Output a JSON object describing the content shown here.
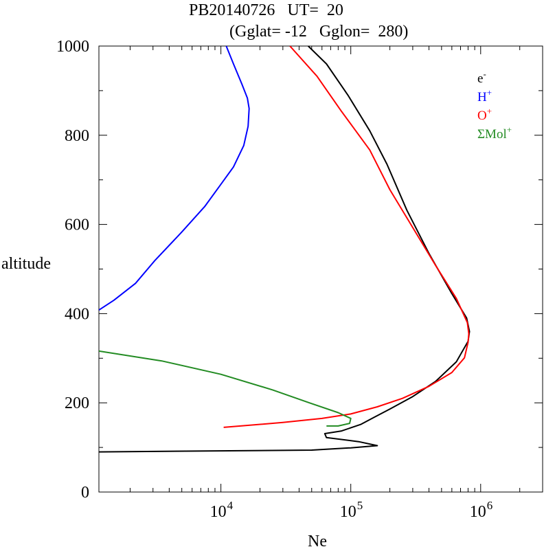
{
  "header": {
    "title_line1": "PB20140726   UT=  20",
    "title_line2": "(Gglat= -12   Gglon=  280)"
  },
  "chart_data": {
    "type": "line",
    "xlabel": "Ne",
    "ylabel": "altitude",
    "x_scale": "log",
    "xlim": [
      1150,
      3000000
    ],
    "ylim": [
      0,
      1000
    ],
    "y_ticks": [
      0,
      200,
      400,
      600,
      800,
      1000
    ],
    "x_tick_labels": [
      {
        "value": 10000,
        "base": "10",
        "exp": "4"
      },
      {
        "value": 100000,
        "base": "10",
        "exp": "5"
      },
      {
        "value": 1000000,
        "base": "10",
        "exp": "6"
      }
    ],
    "legend_position": "top-right",
    "series": [
      {
        "name": "e-",
        "label_base": "e",
        "label_sup": "-",
        "color": "#000000",
        "points": [
          [
            1150,
            90
          ],
          [
            50000,
            94
          ],
          [
            100000,
            99
          ],
          [
            160000,
            104
          ],
          [
            115000,
            113
          ],
          [
            65000,
            122
          ],
          [
            63000,
            131
          ],
          [
            85000,
            137
          ],
          [
            120000,
            152
          ],
          [
            150000,
            167
          ],
          [
            200000,
            186
          ],
          [
            300000,
            214
          ],
          [
            450000,
            248
          ],
          [
            650000,
            292
          ],
          [
            800000,
            338
          ],
          [
            820000,
            360
          ],
          [
            780000,
            390
          ],
          [
            600000,
            445
          ],
          [
            400000,
            535
          ],
          [
            270000,
            632
          ],
          [
            190000,
            735
          ],
          [
            140000,
            810
          ],
          [
            95000,
            890
          ],
          [
            65000,
            960
          ],
          [
            47000,
            1000
          ]
        ]
      },
      {
        "name": "H+",
        "label_base": "H",
        "label_sup": "+",
        "color": "#0000ff",
        "points": [
          [
            1150,
            408
          ],
          [
            1500,
            430
          ],
          [
            2200,
            468
          ],
          [
            3100,
            519
          ],
          [
            5000,
            583
          ],
          [
            7500,
            640
          ],
          [
            10000,
            690
          ],
          [
            12500,
            729
          ],
          [
            15000,
            777
          ],
          [
            16200,
            820
          ],
          [
            16500,
            860
          ],
          [
            16000,
            883
          ],
          [
            14500,
            915
          ],
          [
            12500,
            960
          ],
          [
            11000,
            1000
          ]
        ]
      },
      {
        "name": "O+",
        "label_base": "O",
        "label_sup": "+",
        "color": "#ff0000",
        "points": [
          [
            10500,
            145
          ],
          [
            30000,
            156
          ],
          [
            60000,
            165
          ],
          [
            100000,
            175
          ],
          [
            160000,
            191
          ],
          [
            250000,
            210
          ],
          [
            400000,
            237
          ],
          [
            600000,
            268
          ],
          [
            750000,
            301
          ],
          [
            800000,
            336
          ],
          [
            810000,
            355
          ],
          [
            790000,
            380
          ],
          [
            650000,
            434
          ],
          [
            450000,
            508
          ],
          [
            300000,
            593
          ],
          [
            200000,
            678
          ],
          [
            140000,
            767
          ],
          [
            85000,
            853
          ],
          [
            55000,
            932
          ],
          [
            34000,
            1000
          ]
        ]
      },
      {
        "name": "ΣMol+",
        "label_base": "ΣMol",
        "label_sup": "+",
        "color": "#228b22",
        "points": [
          [
            1150,
            316
          ],
          [
            3500,
            294
          ],
          [
            10000,
            264
          ],
          [
            25000,
            229
          ],
          [
            48000,
            200
          ],
          [
            80000,
            178
          ],
          [
            100000,
            165
          ],
          [
            98000,
            154
          ],
          [
            80000,
            148
          ],
          [
            65000,
            148
          ]
        ]
      }
    ]
  }
}
